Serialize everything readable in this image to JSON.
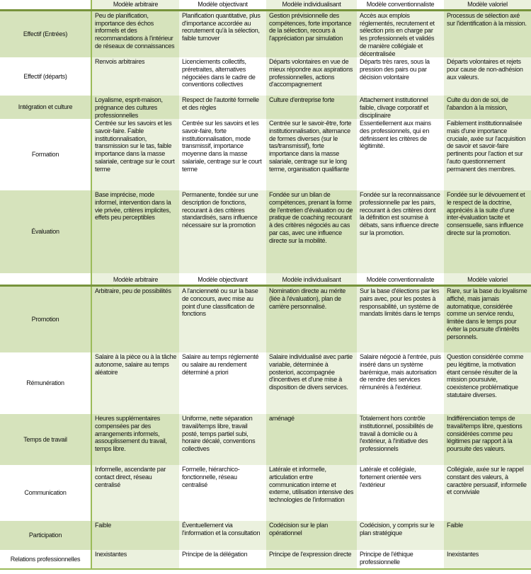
{
  "headers": [
    "Modèle arbitraire",
    "Modèle objectivant",
    "Modèle individualisant",
    "Modèle conventionnaliste",
    "Modèle valoriel"
  ],
  "colors": {
    "band_dark": "#d6e3bc",
    "band_light": "#ebf1de",
    "rule": "#77933c"
  },
  "sections": [
    {
      "rows": [
        {
          "label": "Effectif (Entrées)",
          "cells": [
            "Peu de planification, importance des échos informels et des recommandations à l'intérieur de réseaux de connaissances",
            "Planification quantitative, plus d'importance accordée au recrutement qu'à la sélection, faible turnover",
            "Gestion prévisionnelle des compétences, forte importance de la sélection, recours à l'appréciation par simulation",
            "Accès aux emplois réglementés, recrutement et sélection pris en charge par les professionnels et validés de manière collégiale et décentralisée",
            "Processus de sélection axé sur l'identification à la mission."
          ]
        },
        {
          "label": "Effectif (départs)",
          "cells": [
            "Renvois arbitraires",
            "Licenciements collectifs, préretraites, alternatives négociées dans le cadre de conventions collectives",
            "Départs volontaires en vue de mieux répondre aux aspirations professionnelles, actions d'accompagnement",
            "Départs très rares, sous la pression des pairs ou par décision volontaire",
            "Départs volontaires et rejets pour cause de non-adhésion aux valeurs."
          ]
        },
        {
          "label": "Intégration et culture",
          "cells": [
            "Loyalisme, esprit-maison, prégnance des cultures professionnelles",
            "Respect de l'autorité formelle et des règles",
            "Culture d'entreprise forte",
            "Attachement institutionnel faible, clivage corporatif et disciplinaire",
            "Culte du don de soi, de l'abandon à la mission,"
          ]
        },
        {
          "label": "Formation",
          "cells": [
            "Centrée sur les savoirs et les  savoir-faire. Faible institutionnalisation, transmission sur le tas, faible importance dans la masse salariale, centrage sur le court terme",
            "Centrée sur les savoirs et les savoir-faire, forte institutionnalisation, mode transmissif, importance moyenne dans la masse salariale, centrage sur le court terme",
            "Centrée sur le savoir-être, forte institutionnalisation, alternance de formes diverses  (sur le tas/transmissif), forte importance dans la masse salariale, centrage sur le long terme, organisation qualifiante",
            "Essentiellement aux mains des professionnels, qui en définissent les critères de légitimité.",
            "Faiblement institutionnalisée mais d'une importance cruciale, axée sur l'acquisition de savoir et savoir-faire pertinents pour l'action et sur l'auto questionnement permanent des membres."
          ]
        },
        {
          "label": "Évaluation",
          "cells": [
            "Base imprécise, mode informel, intervention dans la vie privée, critères implicites, effets peu perceptibles",
            "Permanente, fondée sur une description de fonctions, recourant à des critères standardisés, sans influence nécessaire sur la promotion",
            "Fondée sur un bilan de compétences, prenant la forme de l'entretien d'évaluation ou de pratique de coaching recourant à des critères négociés au cas par cas, avec une influence directe sur la mobilité.",
            "Fondée sur la reconnaissance professionnelle par les pairs, recourant à des critères dont la définition est soumise à débats, sans influence directe sur la promotion.",
            "Fondée sur le dévouement et le respect de la doctrine, appréciés à la suite d'une inter-évaluation tacite et consensuelle, sans influence directe sur la promotion."
          ]
        }
      ]
    },
    {
      "rows": [
        {
          "label": "Promotion",
          "cells": [
            "Arbitraire, peu de possibilités",
            "A l'ancienneté ou sur la base de concours, avec mise au point d'une classification de fonctions",
            "Nomination directe au mérite (liée à l'évaluation), plan de carrière personnalisé.",
            "Sur la base d'élections par les pairs avec, pour les postes à responsabilité, un système de mandats limités dans le temps",
            "Rare, sur la base du loyalisme affiché, mais jamais automatique, considérée comme un service rendu, limitée dans le temps pour éviter la poursuite d'intérêts personnels."
          ]
        },
        {
          "label": "Rémunération",
          "cells": [
            "Salaire à la pièce ou à la tâche autonome, salaire au temps aléatoire",
            "Salaire au temps réglementé ou salaire au rendement déterminé a priori",
            "Salaire individualisé avec partie variable, déterminée à posteriori, accompagnée d'incentives et d'une mise à disposition de divers services.",
            "Salaire négocié à l'entrée, puis inséré dans un système barémique, mais autorisation de rendre des services rémunérés à l'extérieur.",
            "Question considérée comme peu légitime, la motivation étant censée résulter de la mission poursuivie, coexistence problématique statutaire diverses."
          ]
        },
        {
          "label": "Temps de travail",
          "cells": [
            "Heures supplémentaires compensées par des arrangements informels, assouplissement du travail, temps libre.",
            "Uniforme, nette séparation travail/temps libre, travail posté, temps partiel subi, horaire décalé, conventions collectives",
            "aménagé",
            "Totalement hors contrôle institutionnel, possibilités de travail à domicile ou à l'extérieur, à l'initiative des professionnels",
            "Indifférenciation temps de travail/temps libre, questions considérées comme peu légitimes par rapport à la poursuite des valeurs."
          ]
        },
        {
          "label": "Communication",
          "cells": [
            "Informelle, ascendante par contact direct, réseau centralisé",
            "Formelle, hiérarchico-fonctionnelle, réseau centralisé",
            "Latérale et informelle, articulation entre communication interne et externe, utilisation intensive des technologies de l'information",
            "Latérale et collégiale, fortement orientée vers l'extérieur",
            "Collégiale, axée sur le rappel constant des valeurs, à caractère persuasif, informelle et conviviale"
          ]
        },
        {
          "label": "Participation",
          "cells": [
            "Faible",
            "Éventuellement via l'information et la consultation",
            "Codécision sur le plan opérationnel",
            "Codécision, y compris sur le plan stratégique",
            "Faible"
          ]
        },
        {
          "label": "Relations professionnelles",
          "cells": [
            "Inexistantes",
            "Principe de la délégation",
            "Principe de l'expression directe",
            "Principe de l'éthique professionnelle",
            "Inexistantes"
          ]
        }
      ]
    }
  ]
}
